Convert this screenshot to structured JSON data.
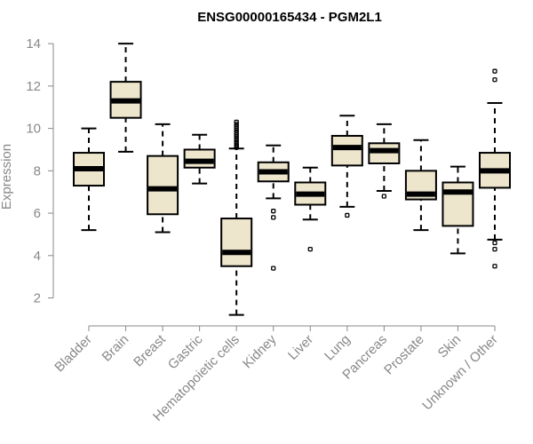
{
  "chart_data": {
    "type": "boxplot",
    "title": "ENSG00000165434 - PGM2L1",
    "xlabel": "",
    "ylabel": "Expression",
    "ylim": [
      1.1,
      14.3
    ],
    "yticks": [
      2,
      4,
      6,
      8,
      10,
      12,
      14
    ],
    "grid": false,
    "categories": [
      "Bladder",
      "Brain",
      "Breast",
      "Gastric",
      "Hematopoietic cells",
      "Kidney",
      "Liver",
      "Lung",
      "Pancreas",
      "Prostate",
      "Skin",
      "Unknown / Other"
    ],
    "boxes": [
      {
        "category": "Bladder",
        "whisker_low": 5.2,
        "q1": 7.3,
        "median": 8.1,
        "q3": 8.85,
        "whisker_high": 10.0,
        "outliers": []
      },
      {
        "category": "Brain",
        "whisker_low": 8.9,
        "q1": 10.5,
        "median": 11.3,
        "q3": 12.2,
        "whisker_high": 14.0,
        "outliers": []
      },
      {
        "category": "Breast",
        "whisker_low": 5.1,
        "q1": 5.95,
        "median": 7.15,
        "q3": 8.7,
        "whisker_high": 10.2,
        "outliers": []
      },
      {
        "category": "Gastric",
        "whisker_low": 7.4,
        "q1": 8.15,
        "median": 8.45,
        "q3": 9.0,
        "whisker_high": 9.7,
        "outliers": []
      },
      {
        "category": "Hematopoietic cells",
        "whisker_low": 1.2,
        "q1": 3.5,
        "median": 4.15,
        "q3": 5.75,
        "whisker_high": 9.05,
        "outliers": [
          9.1,
          9.15,
          9.2,
          9.3,
          9.4,
          9.5,
          9.6,
          9.7,
          9.8,
          9.9,
          10.0,
          10.1,
          10.2,
          10.3
        ]
      },
      {
        "category": "Kidney",
        "whisker_low": 6.7,
        "q1": 7.5,
        "median": 7.95,
        "q3": 8.4,
        "whisker_high": 9.2,
        "outliers": [
          6.1,
          5.8,
          3.4
        ]
      },
      {
        "category": "Liver",
        "whisker_low": 5.7,
        "q1": 6.4,
        "median": 6.9,
        "q3": 7.45,
        "whisker_high": 8.15,
        "outliers": [
          4.3
        ]
      },
      {
        "category": "Lung",
        "whisker_low": 6.3,
        "q1": 8.25,
        "median": 9.1,
        "q3": 9.65,
        "whisker_high": 10.6,
        "outliers": [
          5.9
        ]
      },
      {
        "category": "Pancreas",
        "whisker_low": 7.05,
        "q1": 8.35,
        "median": 8.95,
        "q3": 9.3,
        "whisker_high": 10.2,
        "outliers": [
          6.8
        ]
      },
      {
        "category": "Prostate",
        "whisker_low": 5.2,
        "q1": 6.65,
        "median": 6.9,
        "q3": 8.0,
        "whisker_high": 9.45,
        "outliers": []
      },
      {
        "category": "Skin",
        "whisker_low": 4.1,
        "q1": 5.4,
        "median": 7.0,
        "q3": 7.45,
        "whisker_high": 8.2,
        "outliers": []
      },
      {
        "category": "Unknown / Other",
        "whisker_low": 4.75,
        "q1": 7.2,
        "median": 8.0,
        "q3": 8.85,
        "whisker_high": 11.2,
        "outliers": [
          12.7,
          12.3,
          4.6,
          4.3,
          3.5
        ]
      }
    ]
  },
  "colors": {
    "box_fill": "#ede5cc",
    "stroke": "#000000",
    "axis": "#888888"
  }
}
